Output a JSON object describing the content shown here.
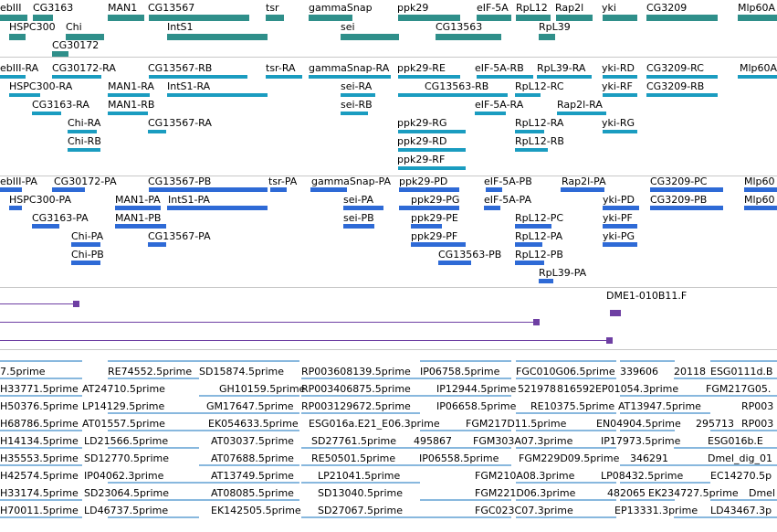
{
  "tracks": {
    "genes": {
      "color": "#2f8f8a",
      "labels": [
        "ebIII",
        "CG3163",
        "MAN1",
        "CG13567",
        "tsr",
        "gammaSnap",
        "ppk29",
        "eIF-5A",
        "RpL12",
        "Rap2l",
        "yki",
        "CG3209",
        "Mlp60A",
        "HSPC300",
        "Chi",
        "IntS1",
        "sei",
        "CG13563",
        "RpL39",
        "CG30172"
      ]
    },
    "rna": {
      "color": "#1a9cc0",
      "labels": [
        "ebIII-RA",
        "CG30172-RA",
        "CG13567-RB",
        "tsr-RA",
        "gammaSnap-RA",
        "ppk29-RE",
        "eIF-5A-RB",
        "RpL39-RA",
        "yki-RD",
        "CG3209-RC",
        "Mlp60A",
        "HSPC300-RA",
        "MAN1-RA",
        "IntS1-RA",
        "sei-RA",
        "CG13563-RB",
        "RpL12-RC",
        "yki-RF",
        "CG3209-RB",
        "CG3163-RA",
        "MAN1-RB",
        "sei-RB",
        "eIF-5A-RA",
        "Rap2l-RA",
        "Chi-RA",
        "CG13567-RA",
        "ppk29-RG",
        "RpL12-RA",
        "yki-RG",
        "Chi-RB",
        "ppk29-RD",
        "RpL12-RB",
        "ppk29-RF"
      ]
    },
    "protein": {
      "color": "#2e6ad6",
      "labels": [
        "ebIII-PA",
        "CG30172-PA",
        "CG13567-PB",
        "tsr-PA",
        "gammaSnap-PA",
        "ppk29-PD",
        "eIF-5A-PB",
        "Rap2l-PA",
        "CG3209-PC",
        "Mlp60",
        "HSPC300-PA",
        "MAN1-PA",
        "IntS1-PA",
        "sei-PA",
        "ppk29-PG",
        "eIF-5A-PA",
        "yki-PD",
        "CG3209-PB",
        "Mlp60",
        "CG3163-PA",
        "MAN1-PB",
        "sei-PB",
        "ppk29-PE",
        "RpL12-PC",
        "yki-PF",
        "Chi-PA",
        "CG13567-PA",
        "ppk29-PF",
        "RpL12-PA",
        "yki-PG",
        "Chi-PB",
        "CG13563-PB",
        "RpL12-PB",
        "RpL39-PA"
      ]
    },
    "alignments": {
      "color": "#6e3fa3",
      "labels": [
        "DME1-010B11.F"
      ]
    },
    "ests": {
      "color": "#88b8de",
      "labels": [
        "7.5prime",
        "RE74552.5prime",
        "SD15874.5prime",
        "RP003608139.5prime",
        "IP06758.5prime",
        "FGC010G06.5prime",
        "339606",
        "20118",
        "ESG0111d.B",
        "H33771.5prime",
        "AT24710.5prime",
        "GH10159.5prime",
        "RP003406875.5prime",
        "IP12944.5prime",
        "521978",
        "816592",
        "EP01054.3prime",
        "FGM217G05.",
        "H50376.5prime",
        "LP14129.5prime",
        "GM17647.5prime",
        "RP003129672.5prime",
        "IP06658.5prime",
        "RE10375.5prime",
        "AT13947.5prime",
        "RP003",
        "H68786.5prime",
        "AT01557.5prime",
        "EK054633.5prime",
        "ESG016a.E21_E06.3prime",
        "FGM217D11.5prime",
        "EN04904.5prime",
        "295713",
        "RP003",
        "H14134.5prime",
        "LD21566.5prime",
        "AT03037.5prime",
        "SD27761.5prime",
        "495867",
        "FGM303A07.3prime",
        "IP17973.5prime",
        "ESG016b.E",
        "H35553.5prime",
        "SD12770.5prime",
        "AT07688.5prime",
        "RE50501.5prime",
        "IP06558.5prime",
        "FGM229D09.5prime",
        "346291",
        "Dmel_dig_01",
        "H42574.5prime",
        "IP04062.3prime",
        "AT13749.5prime",
        "LP21041.5prime",
        "FGM210A08.3prime",
        "LP08432.5prime",
        "EC14270.5p",
        "H33174.5prime",
        "SD23064.5prime",
        "AT08085.5prime",
        "SD13040.5prime",
        "FGM221D06.3prime",
        "482065",
        "EK234727.5prime",
        "Dmel",
        "H70011.5prime",
        "LD46737.5prime",
        "EK142505.5prime",
        "SD27067.5prime",
        "FGC023C07.3prime",
        "EP13331.3prime",
        "LD43467.3p"
      ]
    }
  }
}
